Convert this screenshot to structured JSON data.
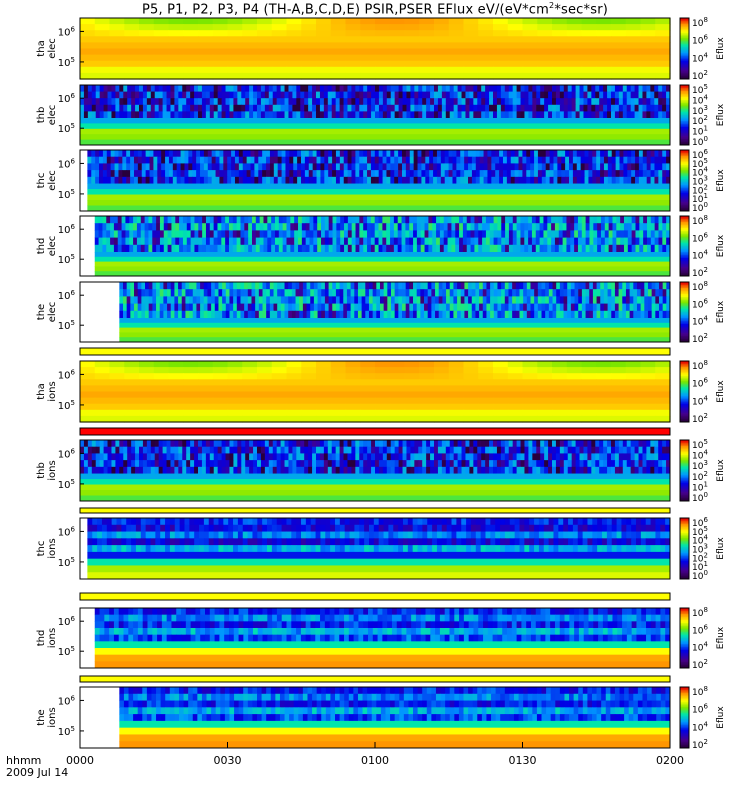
{
  "title_main": "P5, P1, P2, P3, P4 (TH-A,B,C,D,E) PSIR,PSER EFlux eV/(eV*cm",
  "title_sup": "2",
  "title_end": "*sec*sr)",
  "colors": {
    "background": "#ffffff",
    "axis": "#000000",
    "stripe_yellow": "#ffff00",
    "stripe_red": "#ff0000"
  },
  "time_axis": {
    "label_line1": "hhmm",
    "label_line2": "2009 Jul 14",
    "ticks": [
      "0000",
      "0030",
      "0100",
      "0130",
      "0200"
    ],
    "minutes": [
      0,
      30,
      60,
      90,
      120
    ]
  },
  "chart_data": {
    "type": "heatmap",
    "x_unit": "minutes since 2009 Jul 14 00:00",
    "xlim": [
      0,
      120
    ],
    "yscale": "log",
    "zscale": "log",
    "colorbar_label": "Eflux",
    "panels": [
      {
        "name": "tha elec",
        "ylabel_line1": "tha",
        "ylabel_line2": "elec",
        "yticks": [
          "10^6",
          "10^5"
        ],
        "yvalues": [
          1000000,
          100000
        ],
        "cbar_ticks": [
          "10^8",
          "10^6",
          "10^4",
          "10^2"
        ],
        "data_start_min": 0,
        "pattern": "smooth_high"
      },
      {
        "name": "thb elec",
        "ylabel_line1": "thb",
        "ylabel_line2": "elec",
        "yticks": [
          "10^6",
          "10^5"
        ],
        "yvalues": [
          1000000,
          100000
        ],
        "cbar_ticks": [
          "10^5",
          "10^4",
          "10^3",
          "10^2",
          "10^1",
          "10^0"
        ],
        "data_start_min": 0,
        "pattern": "noisy_top"
      },
      {
        "name": "thc elec",
        "ylabel_line1": "thc",
        "ylabel_line2": "elec",
        "yticks": [
          "10^6",
          "10^5"
        ],
        "yvalues": [
          1000000,
          100000
        ],
        "cbar_ticks": [
          "10^6",
          "10^5",
          "10^4",
          "10^3",
          "10^2",
          "10^1",
          "10^0"
        ],
        "data_start_min": 1.5,
        "pattern": "noisy_top"
      },
      {
        "name": "thd elec",
        "ylabel_line1": "thd",
        "ylabel_line2": "elec",
        "yticks": [
          "10^6",
          "10^5"
        ],
        "yvalues": [
          1000000,
          100000
        ],
        "cbar_ticks": [
          "10^8",
          "10^6",
          "10^4",
          "10^2"
        ],
        "data_start_min": 3,
        "pattern": "noisy_blue"
      },
      {
        "name": "the elec",
        "ylabel_line1": "the",
        "ylabel_line2": "elec",
        "yticks": [
          "10^6",
          "10^5"
        ],
        "yvalues": [
          1000000,
          100000
        ],
        "cbar_ticks": [
          "10^8",
          "10^6",
          "10^4",
          "10^2"
        ],
        "data_start_min": 8,
        "pattern": "noisy_blue"
      },
      {
        "name": "tha ions",
        "ylabel_line1": "tha",
        "ylabel_line2": "ions",
        "yticks": [
          "10^6",
          "10^5"
        ],
        "yvalues": [
          1000000,
          100000
        ],
        "cbar_ticks": [
          "10^8",
          "10^6",
          "10^4",
          "10^2"
        ],
        "data_start_min": 0,
        "pattern": "smooth_high"
      },
      {
        "name": "thb ions",
        "ylabel_line1": "thb",
        "ylabel_line2": "ions",
        "yticks": [
          "10^6",
          "10^5"
        ],
        "yvalues": [
          1000000,
          100000
        ],
        "cbar_ticks": [
          "10^5",
          "10^4",
          "10^3",
          "10^2",
          "10^1",
          "10^0"
        ],
        "data_start_min": 0,
        "pattern": "noisy_top"
      },
      {
        "name": "thc ions",
        "ylabel_line1": "thc",
        "ylabel_line2": "ions",
        "yticks": [
          "10^6",
          "10^5"
        ],
        "yvalues": [
          1000000,
          100000
        ],
        "cbar_ticks": [
          "10^6",
          "10^5",
          "10^4",
          "10^3",
          "10^2",
          "10^1",
          "10^0"
        ],
        "data_start_min": 1.5,
        "pattern": "bands"
      },
      {
        "name": "thd ions",
        "ylabel_line1": "thd",
        "ylabel_line2": "ions",
        "yticks": [
          "10^6",
          "10^5"
        ],
        "yvalues": [
          1000000,
          100000
        ],
        "cbar_ticks": [
          "10^8",
          "10^6",
          "10^4",
          "10^2"
        ],
        "data_start_min": 3,
        "pattern": "bands_orange"
      },
      {
        "name": "the ions",
        "ylabel_line1": "the",
        "ylabel_line2": "ions",
        "yticks": [
          "10^6",
          "10^5"
        ],
        "yvalues": [
          1000000,
          100000
        ],
        "cbar_ticks": [
          "10^8",
          "10^6",
          "10^4",
          "10^2"
        ],
        "data_start_min": 8,
        "pattern": "bands_orange"
      }
    ]
  }
}
